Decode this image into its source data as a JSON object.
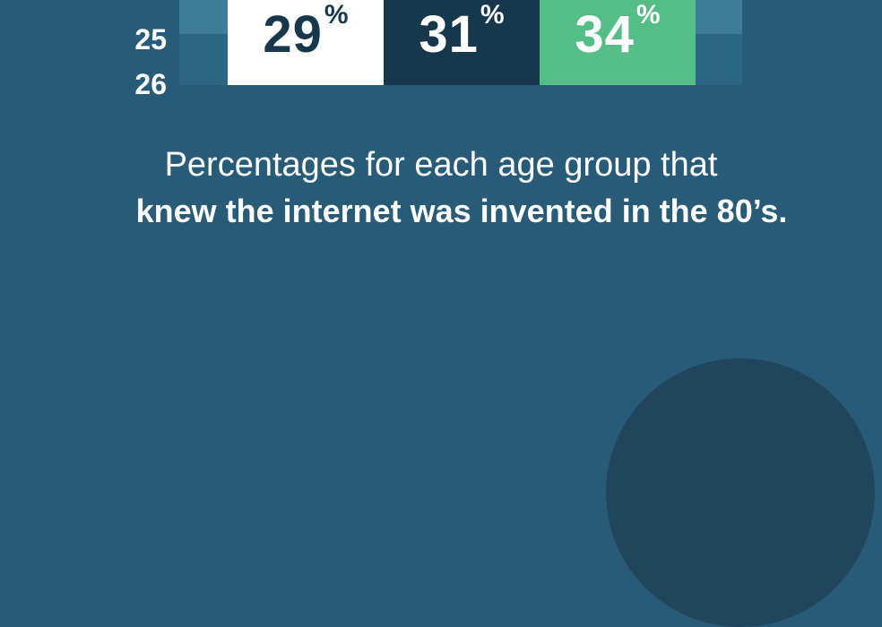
{
  "row_labels": [
    "25",
    "26"
  ],
  "chart_data": {
    "type": "table",
    "unit": "%",
    "values": [
      29,
      31,
      34
    ],
    "colors": [
      "#ffffff",
      "#17374d",
      "#55bd86"
    ],
    "text_colors": [
      "#17374d",
      "#ffffff",
      "#ffffff"
    ]
  },
  "caption": {
    "line1": "Percentages for each age group that",
    "line2": "knew the internet was invented in the 80’s."
  },
  "colors": {
    "background": "#285b77",
    "decorative_circle": "#21465c"
  }
}
